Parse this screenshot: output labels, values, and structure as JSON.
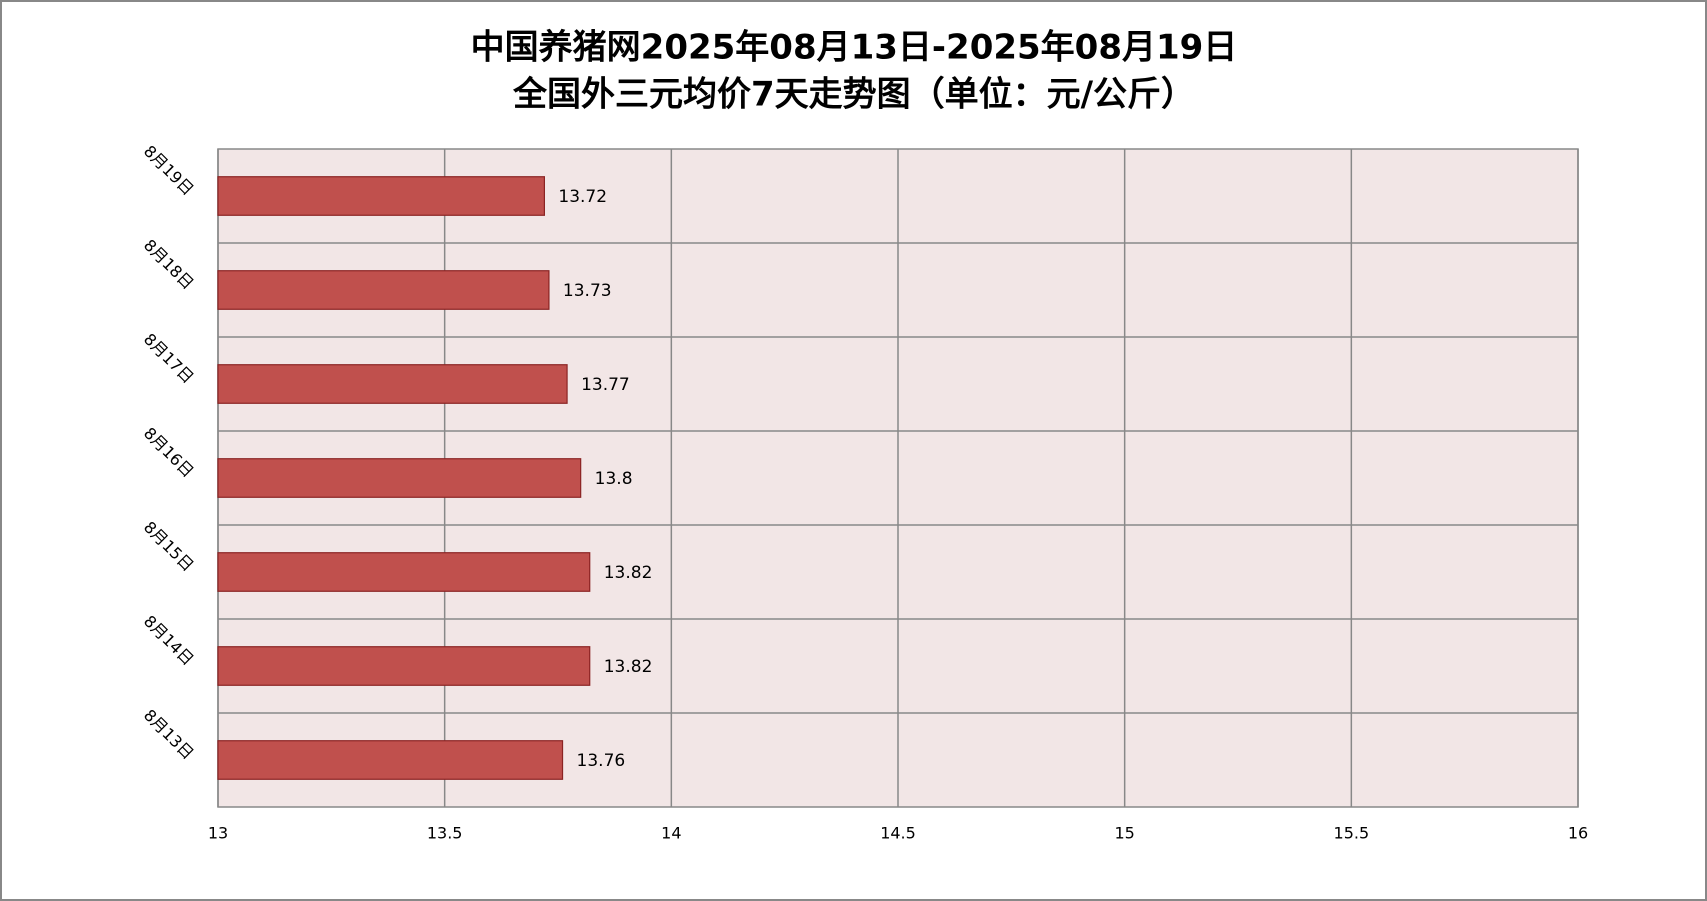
{
  "chart_data": {
    "type": "bar",
    "orientation": "horizontal",
    "title": "中国养猪网2025年08月13日-2025年08月19日",
    "subtitle": "全国外三元均价7天走势图（单位：元/公斤）",
    "categories": [
      "8月19日",
      "8月18日",
      "8月17日",
      "8月16日",
      "8月15日",
      "8月14日",
      "8月13日"
    ],
    "values": [
      13.72,
      13.73,
      13.77,
      13.8,
      13.82,
      13.82,
      13.76
    ],
    "color": "#c0504d",
    "xlim": [
      13,
      16
    ],
    "xticks": [
      13,
      13.5,
      14,
      14.5,
      15,
      15.5,
      16
    ],
    "grid": true
  }
}
